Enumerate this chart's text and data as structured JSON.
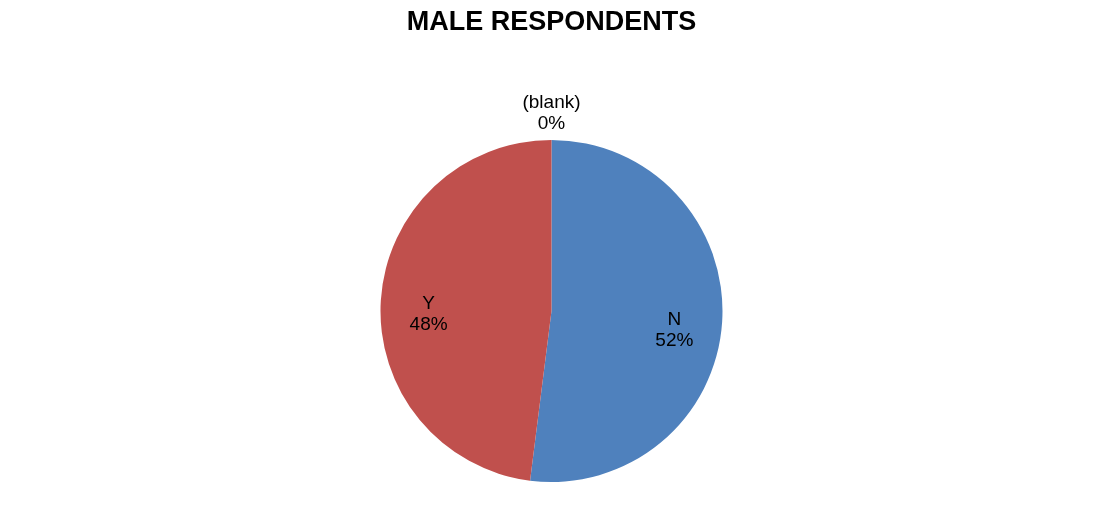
{
  "chart_data": {
    "type": "pie",
    "title": "MALE RESPONDENTS",
    "categories": [
      "N",
      "Y",
      "(blank)"
    ],
    "values": [
      52,
      48,
      0
    ],
    "colors": [
      "#4f81bd",
      "#c0504d",
      "#9bbb59"
    ],
    "value_labels": [
      "52%",
      "48%",
      "0%"
    ],
    "legend": false
  }
}
